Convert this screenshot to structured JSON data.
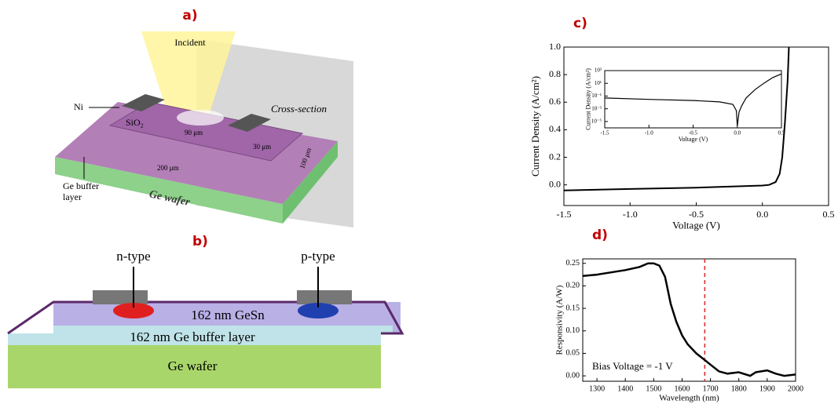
{
  "panel_a": {
    "label": "a)",
    "incident": "Incident",
    "ni": "Ni",
    "sio2": "SiO₂",
    "cross_section": "Cross-section",
    "dim_90": "90 μm",
    "dim_30": "30 μm",
    "dim_200": "200 μm",
    "dim_100": "100 μm",
    "buffer_line1": "Ge buffer",
    "buffer_line2": "layer",
    "wafer": "Ge wafer"
  },
  "panel_b": {
    "label": "b)",
    "n_type": "n-type",
    "p_type": "p-type",
    "gesn": "162 nm GeSn",
    "buffer": "162 nm Ge buffer layer",
    "wafer": "Ge wafer"
  },
  "chart_data": [
    {
      "type": "line",
      "label": "c)",
      "xlabel": "Voltage (V)",
      "ylabel": "Current Density (A/cm²)",
      "xlim": [
        -1.5,
        0.5
      ],
      "ylim": [
        -0.15,
        1.0
      ],
      "xticks": [
        -1.5,
        {
          "value": -1,
          "label": "-1.0"
        },
        -0.5,
        {
          "value": 0,
          "label": "0.0"
        },
        0.5
      ],
      "yticks": [
        {
          "value": 0,
          "label": "0.0"
        },
        0.2,
        0.4,
        0.6,
        0.8,
        {
          "value": 1,
          "label": "1.0"
        }
      ],
      "x": [
        -1.5,
        -1.0,
        -0.5,
        0.0,
        0.05,
        0.1,
        0.13,
        0.15,
        0.17,
        0.19,
        0.2
      ],
      "series": [
        {
          "color": "#000000",
          "values": [
            -0.04,
            -0.03,
            -0.02,
            -0.005,
            0.0,
            0.02,
            0.08,
            0.2,
            0.45,
            0.75,
            1.0
          ]
        }
      ],
      "inset": {
        "type": "line",
        "log_y": true,
        "xlabel": "Voltage (V)",
        "ylabel": "Current Density (A/cm²)",
        "xlim": [
          -1.5,
          0.5
        ],
        "ylim": [
          1e-06,
          1000
        ],
        "xticks": [
          -1.5,
          {
            "value": -1,
            "label": "-1.0"
          },
          -0.5,
          {
            "value": 0,
            "label": "0.0"
          },
          0.5
        ],
        "yticks": [
          {
            "value": 1000,
            "label": "10³"
          },
          {
            "value": 10,
            "label": "10¹"
          },
          {
            "value": 0.1,
            "label": "10⁻¹"
          },
          {
            "value": 0.001,
            "label": "10⁻³"
          },
          {
            "value": 1e-05,
            "label": "10⁻⁵"
          }
        ],
        "x": [
          -1.5,
          -1.0,
          -0.5,
          -0.2,
          -0.05,
          -0.01,
          0.0,
          0.02,
          0.05,
          0.1,
          0.2,
          0.3,
          0.4,
          0.5
        ],
        "series": [
          {
            "color": "#000000",
            "values": [
              0.05,
              0.03,
              0.02,
              0.012,
              0.005,
              0.0005,
              2e-06,
              0.0003,
              0.003,
              0.05,
              1,
              10,
              80,
              300
            ]
          }
        ]
      }
    },
    {
      "type": "line",
      "label": "d)",
      "xlabel": "Wavelength (nm)",
      "ylabel": "Responsivity (A/W)",
      "annotation": "Bias Voltage = -1 V",
      "xlim": [
        1250,
        2000
      ],
      "ylim": [
        -0.012,
        0.26
      ],
      "xticks": [
        1300,
        1400,
        1500,
        1600,
        1700,
        1800,
        1900,
        2000
      ],
      "yticks": [
        {
          "value": 0,
          "label": "0.00"
        },
        {
          "value": 0.05,
          "label": "0.05"
        },
        {
          "value": 0.1,
          "label": "0.10"
        },
        {
          "value": 0.15,
          "label": "0.15"
        },
        {
          "value": 0.2,
          "label": "0.20"
        },
        {
          "value": 0.25,
          "label": "0.25"
        }
      ],
      "vline": {
        "x": 1680,
        "color": "#d62728"
      },
      "x": [
        1250,
        1300,
        1350,
        1400,
        1450,
        1480,
        1500,
        1520,
        1540,
        1560,
        1580,
        1600,
        1620,
        1650,
        1680,
        1700,
        1730,
        1760,
        1800,
        1840,
        1860,
        1900,
        1930,
        1960,
        2000
      ],
      "series": [
        {
          "color": "#000000",
          "values": [
            0.222,
            0.225,
            0.23,
            0.235,
            0.242,
            0.25,
            0.25,
            0.245,
            0.22,
            0.16,
            0.12,
            0.09,
            0.07,
            0.05,
            0.035,
            0.025,
            0.01,
            0.005,
            0.008,
            0.0,
            0.008,
            0.012,
            0.005,
            0.0,
            0.003
          ]
        }
      ]
    }
  ]
}
